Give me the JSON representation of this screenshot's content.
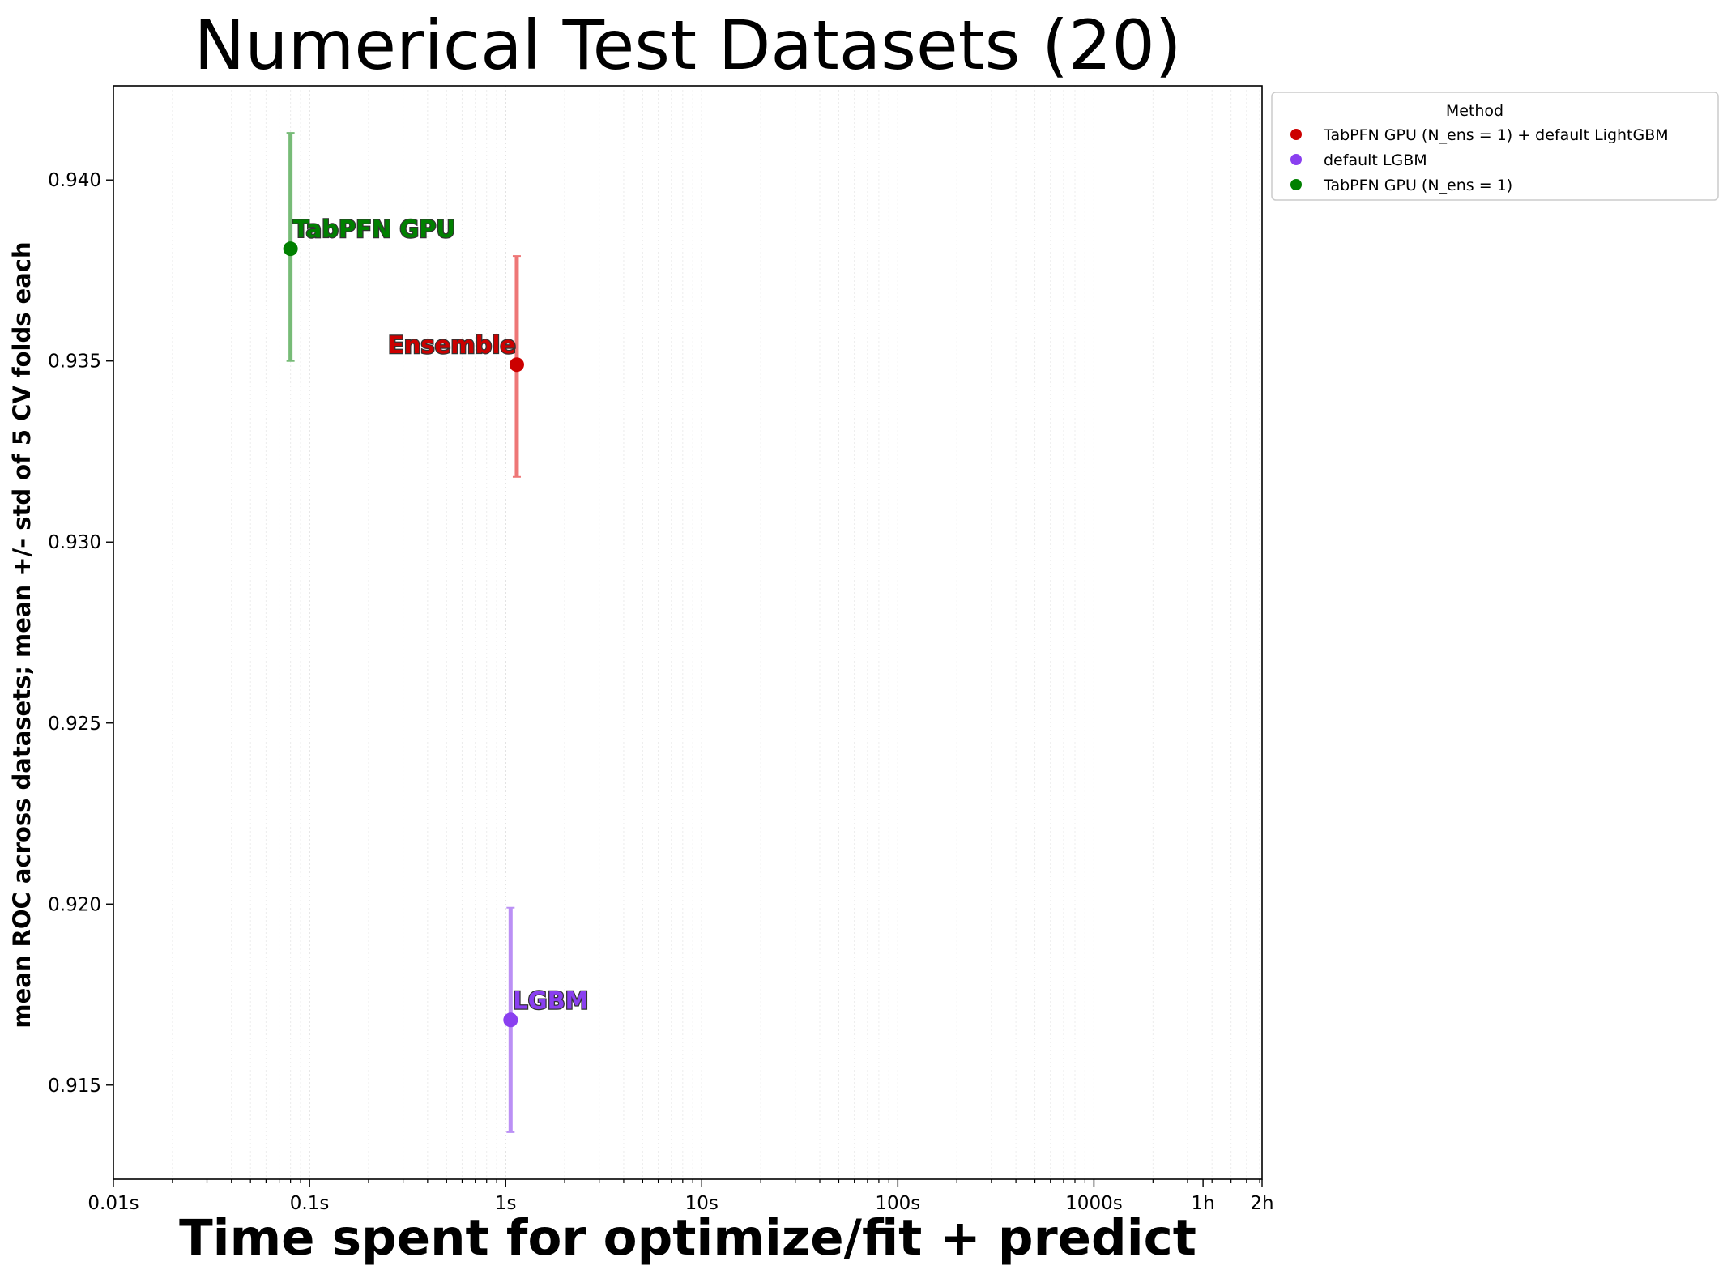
{
  "chart_data": {
    "type": "scatter",
    "title": "Numerical Test Datasets (20)",
    "xlabel": "Time spent for optimize/fit + predict",
    "ylabel": "mean ROC across datasets; mean +/- std of 5 CV folds each",
    "x_scale": "log",
    "x_unit": "seconds",
    "xlim": [
      0.01,
      7200
    ],
    "ylim": [
      0.9124,
      0.9426
    ],
    "x_ticks": [
      {
        "value": 0.01,
        "label": "0.01s"
      },
      {
        "value": 0.1,
        "label": "0.1s"
      },
      {
        "value": 1,
        "label": "1s"
      },
      {
        "value": 10,
        "label": "10s"
      },
      {
        "value": 100,
        "label": "100s"
      },
      {
        "value": 1000,
        "label": "1000s"
      },
      {
        "value": 3600,
        "label": "1h"
      },
      {
        "value": 7200,
        "label": "2h"
      }
    ],
    "y_ticks": [
      {
        "value": 0.915,
        "label": "0.915"
      },
      {
        "value": 0.92,
        "label": "0.920"
      },
      {
        "value": 0.925,
        "label": "0.925"
      },
      {
        "value": 0.93,
        "label": "0.930"
      },
      {
        "value": 0.935,
        "label": "0.935"
      },
      {
        "value": 0.94,
        "label": "0.940"
      }
    ],
    "grid": "vertical dotted, log-scale",
    "legend": {
      "title": "Method",
      "placement": "outside top-right"
    },
    "series": [
      {
        "name": "TabPFN GPU (N_ens =  1) + default LightGBM",
        "label": "Ensemble",
        "label_side": "left",
        "color": "#cc0000",
        "err_color": "#ee7777",
        "x": 1.14,
        "y": 0.9349,
        "err_low": 0.9318,
        "err_high": 0.9379
      },
      {
        "name": "default LGBM",
        "label": "LGBM",
        "label_side": "right",
        "color": "#8a3ff0",
        "err_color": "#bb90f5",
        "x": 1.06,
        "y": 0.9168,
        "err_low": 0.9137,
        "err_high": 0.9199
      },
      {
        "name": "TabPFN GPU (N_ens =  1)",
        "label": "TabPFN GPU",
        "label_side": "right",
        "color": "#008000",
        "err_color": "#77bb77",
        "x": 0.08,
        "y": 0.9381,
        "err_low": 0.935,
        "err_high": 0.9413
      }
    ]
  }
}
